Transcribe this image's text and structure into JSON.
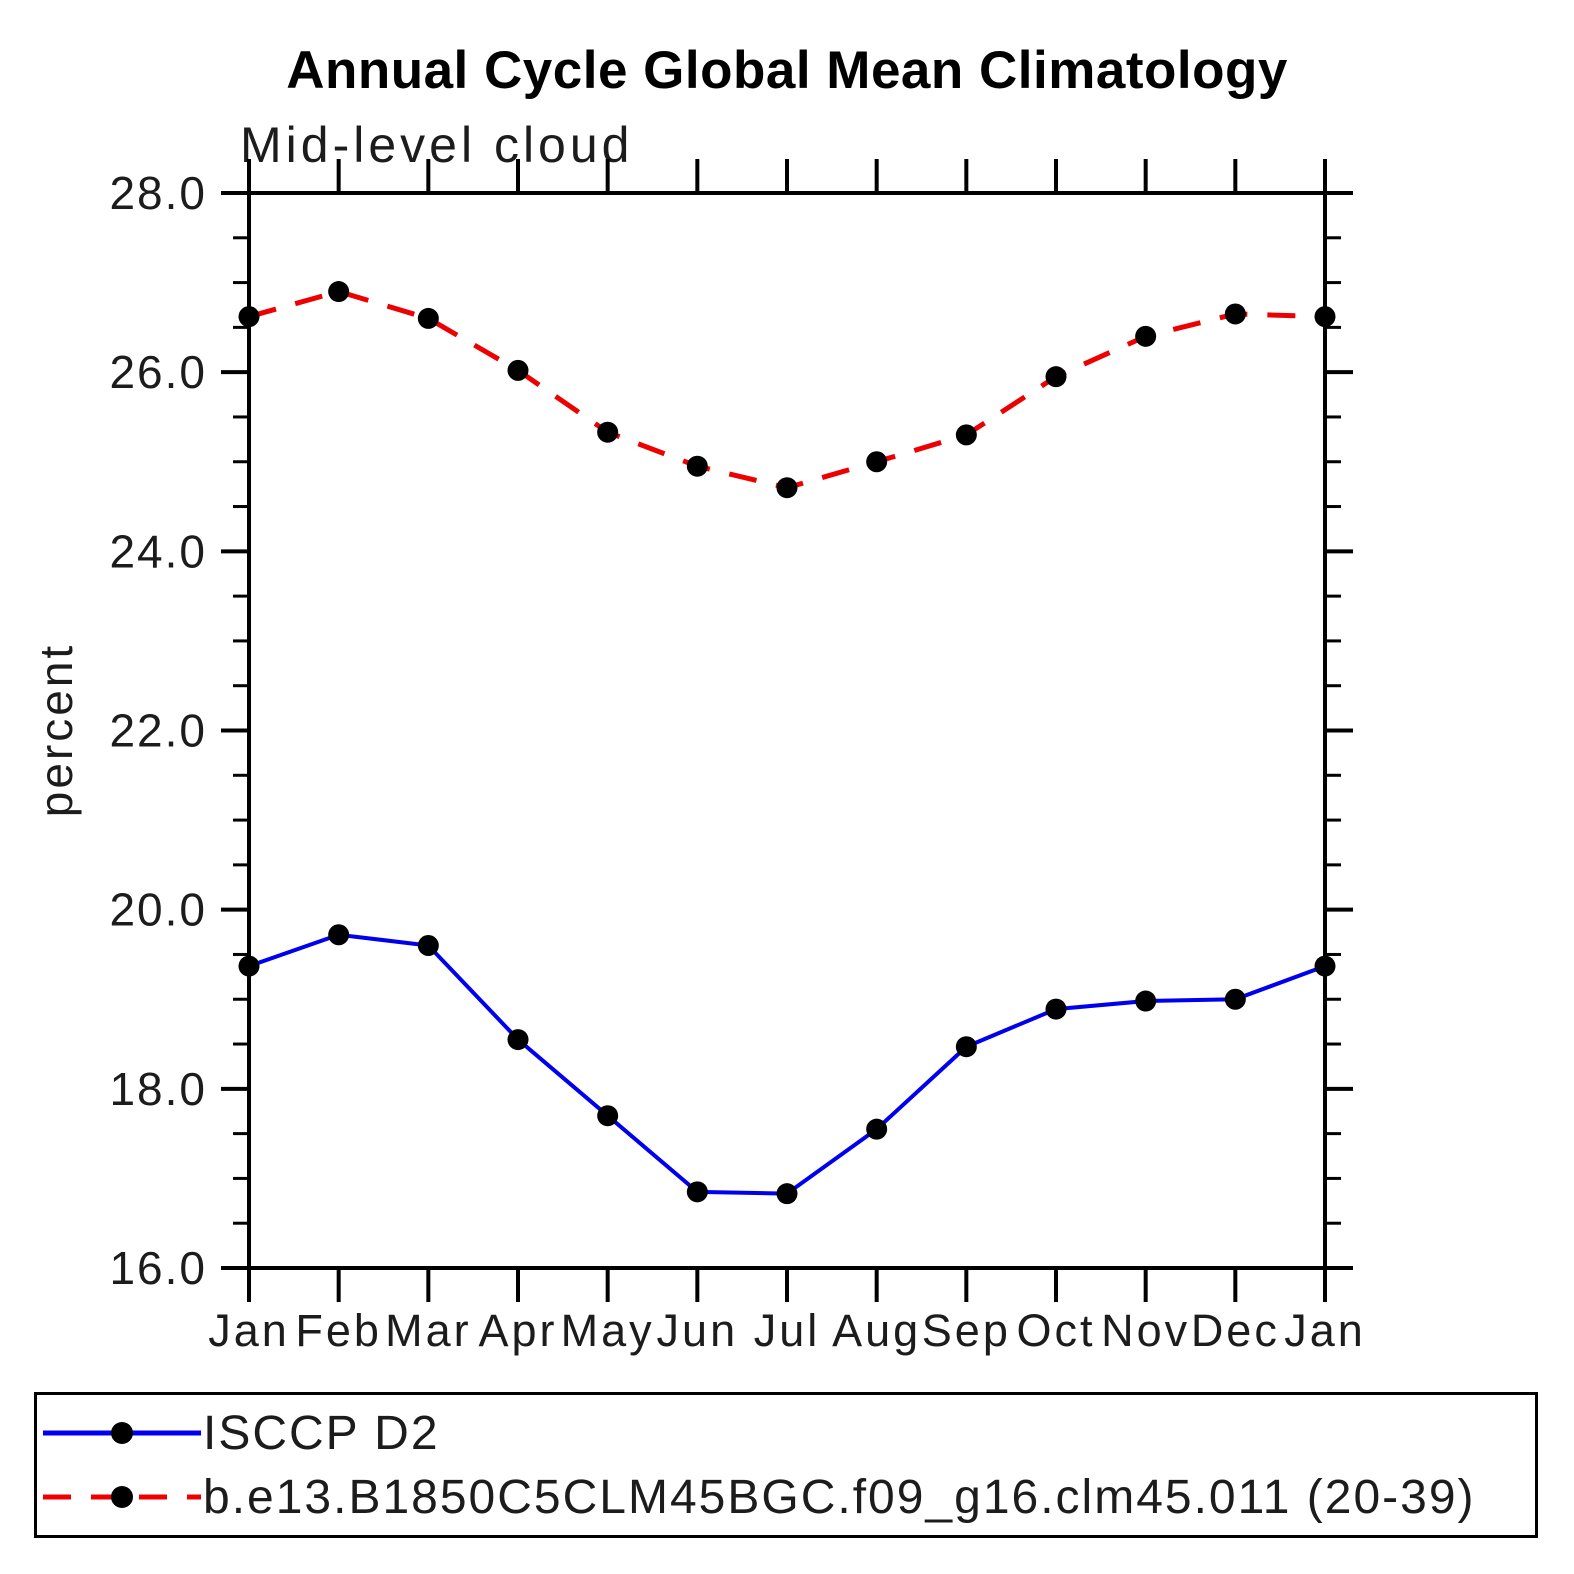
{
  "chart": {
    "title": "Annual Cycle Global Mean Climatology",
    "subtitle": "Mid-level cloud",
    "ylabel": "percent"
  },
  "chart_data": {
    "type": "line",
    "title": "Annual Cycle Global Mean Climatology",
    "subtitle": "Mid-level cloud",
    "xlabel": "",
    "ylabel": "percent",
    "categories": [
      "Jan",
      "Feb",
      "Mar",
      "Apr",
      "May",
      "Jun",
      "Jul",
      "Aug",
      "Sep",
      "Oct",
      "Nov",
      "Dec",
      "Jan"
    ],
    "ylim": [
      16.0,
      28.0
    ],
    "ytick_major": 2.0,
    "ytick_minor": 0.5,
    "ytick_labels": [
      "16.0",
      "18.0",
      "20.0",
      "22.0",
      "24.0",
      "26.0",
      "28.0"
    ],
    "grid": false,
    "legend_position": "bottom",
    "marker": "filled-circle",
    "marker_color": "#000000",
    "series": [
      {
        "name": "ISCCP D2",
        "color": "#0000ee",
        "style": "solid",
        "values": [
          19.37,
          19.72,
          19.6,
          18.55,
          17.7,
          16.85,
          16.83,
          17.55,
          18.47,
          18.89,
          18.98,
          19.0,
          19.37
        ]
      },
      {
        "name": "b.e13.B1850C5CLM45BGC.f09_g16.clm45.011 (20-39)",
        "color": "#ee0000",
        "style": "dashed",
        "values": [
          26.62,
          26.9,
          26.6,
          26.02,
          25.33,
          24.95,
          24.71,
          25.0,
          25.3,
          25.95,
          26.4,
          26.65,
          26.62
        ]
      }
    ]
  }
}
